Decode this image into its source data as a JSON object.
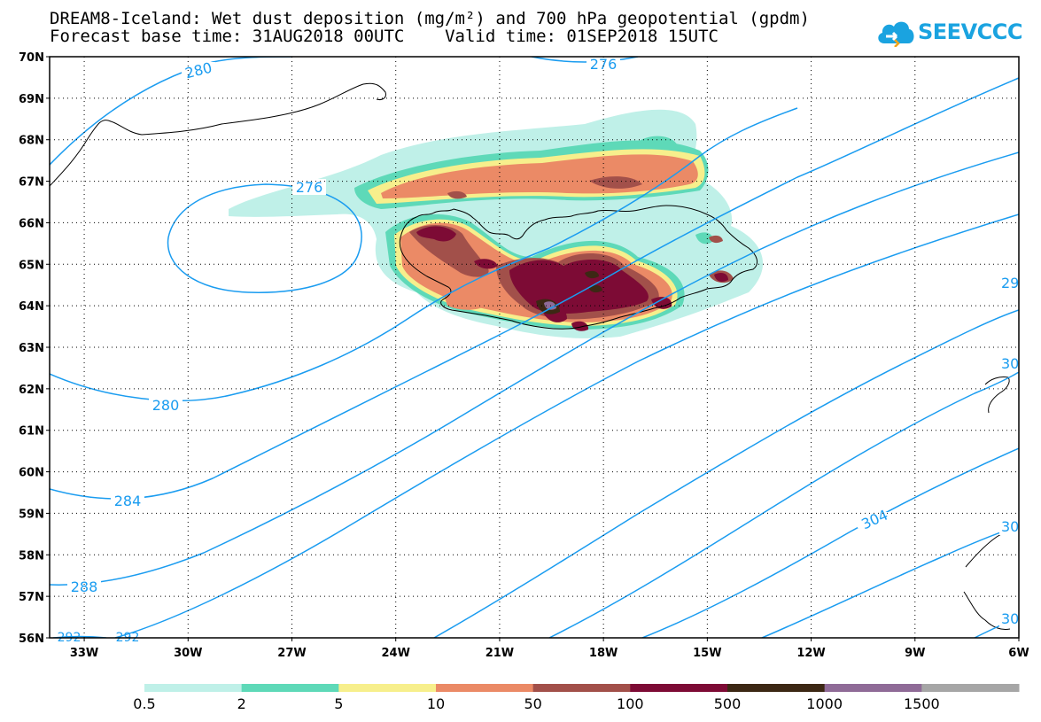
{
  "title": {
    "line1": "DREAM8-Iceland: Wet dust deposition (mg/m²) and 700 hPa geopotential (gpdm)",
    "line2": "Forecast base time: 31AUG2018 00UTC    Valid time: 01SEP2018 15UTC"
  },
  "logo": {
    "text": "SEEVCCC",
    "icon": "cloud-icon",
    "color": "#1aa3e0"
  },
  "map": {
    "lat_labels": [
      "70N",
      "69N",
      "68N",
      "67N",
      "66N",
      "65N",
      "64N",
      "63N",
      "62N",
      "61N",
      "60N",
      "59N",
      "58N",
      "57N",
      "56N"
    ],
    "lon_labels": [
      "33W",
      "30W",
      "27W",
      "24W",
      "21W",
      "18W",
      "15W",
      "12W",
      "9W",
      "6W"
    ],
    "lat_range": [
      56,
      70
    ],
    "lon_range": [
      -34,
      -6
    ],
    "grid": "dotted",
    "contour_color": "#1a9cf0",
    "contour_labels": [
      "280",
      "276",
      "276",
      "280",
      "284",
      "288",
      "292",
      "292",
      "29",
      "304",
      "30",
      "30",
      "30"
    ]
  },
  "colorbar": {
    "colors": [
      "#bff0e8",
      "#5ed9b8",
      "#f7ef8c",
      "#eb8a66",
      "#a2504a",
      "#7d0b35",
      "#3c2814",
      "#8f6b97",
      "#a6a6a6"
    ],
    "labels": [
      "0.5",
      "2",
      "5",
      "10",
      "50",
      "100",
      "500",
      "1000",
      "1500"
    ]
  }
}
